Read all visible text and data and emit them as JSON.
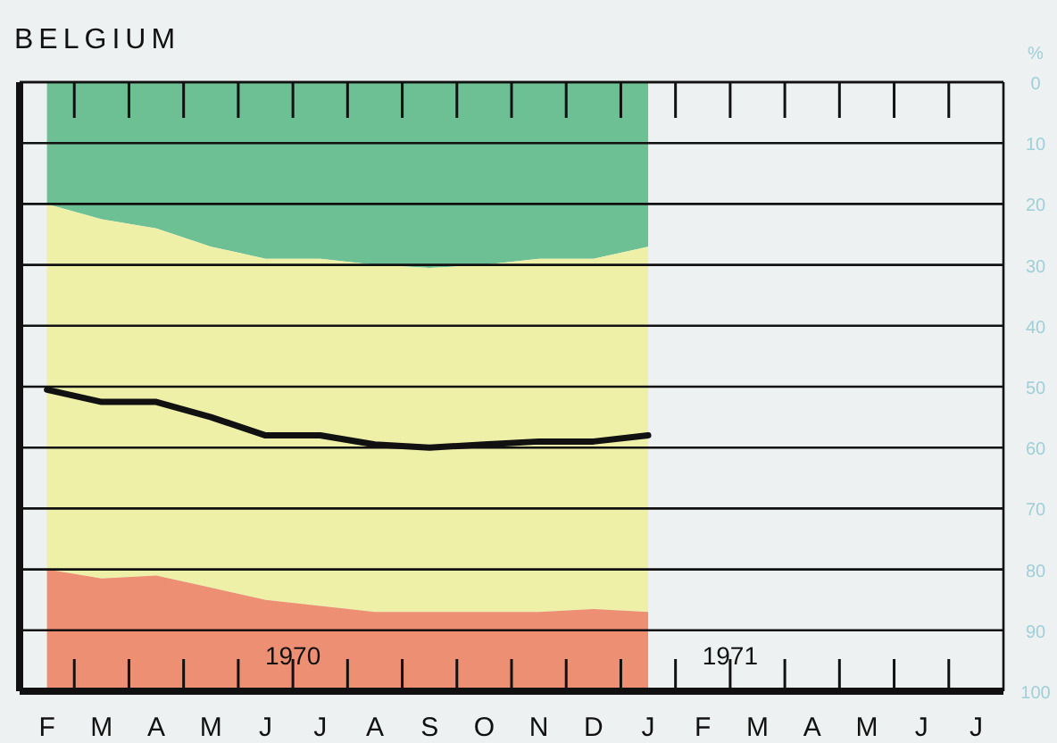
{
  "chart_data": {
    "type": "area",
    "title": "BELGIUM",
    "ylabel": "%",
    "stacked": true,
    "categories": [
      "F",
      "M",
      "A",
      "M",
      "J",
      "J",
      "A",
      "S",
      "O",
      "N",
      "D",
      "J",
      "F",
      "M",
      "A",
      "M",
      "J",
      "J"
    ],
    "series": [
      {
        "color": "#6dbf94",
        "values": [
          20,
          22.5,
          24,
          27,
          29,
          29,
          30,
          30.5,
          30,
          29,
          29,
          27,
          null,
          null,
          null,
          null,
          null,
          null
        ]
      },
      {
        "color": "#eef0a8",
        "values": [
          60,
          59,
          57,
          56,
          56,
          57,
          57,
          56.5,
          57,
          58,
          57.5,
          60,
          null,
          null,
          null,
          null,
          null,
          null
        ]
      },
      {
        "color": "#ec8f72",
        "values": [
          20,
          18.5,
          19,
          17,
          15,
          14,
          13,
          13,
          13,
          13,
          13.5,
          13,
          null,
          null,
          null,
          null,
          null,
          null
        ]
      },
      {
        "type": "line",
        "color": "#111111",
        "values": [
          50.5,
          52.5,
          52.5,
          55,
          58,
          58,
          59.5,
          60,
          59.5,
          59,
          59,
          58,
          null,
          null,
          null,
          null,
          null,
          null
        ]
      }
    ],
    "ylim": [
      100,
      0
    ],
    "yticks": [
      0,
      10,
      20,
      30,
      40,
      50,
      60,
      70,
      80,
      90,
      100
    ],
    "grid": "y",
    "annotations": [
      "1970",
      "1971"
    ]
  }
}
